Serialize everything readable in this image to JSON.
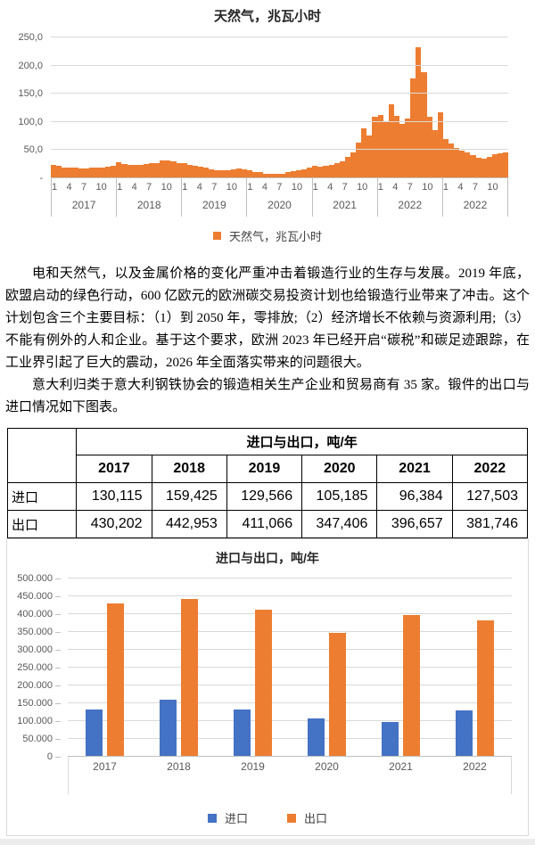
{
  "paragraphs": [
    "电和天然气，以及金属价格的变化严重冲击着锻造行业的生存与发展。2019 年底，欧盟启动的绿色行动，600 亿欧元的欧洲碳交易投资计划也给锻造行业带来了冲击。这个计划包含三个主要目标：（1）到 2050 年，零排放;（2）经济增长不依赖与资源利用;（3）不能有例外的人和企业。基于这个要求，欧洲 2023 年已经开启“碳税”和碳足迹跟踪，在工业界引起了巨大的震动，2026 年全面落实带来的问题很大。",
    "意大利归类于意大利钢铁协会的锻造相关生产企业和贸易商有 35 家。锻件的出口与进口情况如下图表。"
  ],
  "table": {
    "title": "进口与出口，吨/年",
    "corner": "",
    "years": [
      "2017",
      "2018",
      "2019",
      "2020",
      "2021",
      "2022"
    ],
    "rows": [
      {
        "label": "进口",
        "values": [
          "130,115",
          "159,425",
          "129,566",
          "105,185",
          "96,384",
          "127,503"
        ]
      },
      {
        "label": "出口",
        "values": [
          "430,202",
          "442,953",
          "411,066",
          "347,406",
          "396,657",
          "381,746"
        ]
      }
    ]
  },
  "chart_data": [
    {
      "type": "bar",
      "title": "天然气，兆瓦小时",
      "ylabel": "",
      "ylim": [
        0,
        250
      ],
      "y_tick_labels": [
        "250,0",
        "200,0",
        "150,0",
        "100,0",
        "50,0",
        "-"
      ],
      "month_tick_labels": [
        "1",
        "4",
        "7",
        "10"
      ],
      "year_groups": [
        "2017",
        "2018",
        "2019",
        "2020",
        "2021",
        "2022",
        "2022"
      ],
      "grid": true,
      "legend_position": "bottom",
      "legend": [
        {
          "label": "天然气，兆瓦小时",
          "color": "#ED7D31"
        }
      ],
      "monthly_values": [
        22,
        20,
        18,
        17,
        17,
        16,
        16,
        17,
        17,
        18,
        19,
        21,
        27,
        24,
        22,
        22,
        23,
        24,
        25,
        26,
        30,
        31,
        29,
        26,
        25,
        23,
        21,
        19,
        17,
        15,
        13,
        12,
        13,
        15,
        16,
        15,
        12,
        10,
        9,
        7,
        6,
        6,
        7,
        9,
        11,
        13,
        15,
        17,
        20,
        19,
        20,
        22,
        25,
        29,
        36,
        45,
        62,
        88,
        75,
        108,
        111,
        98,
        130,
        110,
        96,
        105,
        176,
        233,
        188,
        108,
        85,
        116,
        68,
        60,
        52,
        47,
        44,
        40,
        35,
        33,
        36,
        41,
        43,
        44
      ]
    },
    {
      "type": "bar",
      "title": "进口与出口，吨/年",
      "categories": [
        "2017",
        "2018",
        "2019",
        "2020",
        "2021",
        "2022"
      ],
      "series": [
        {
          "name": "进口",
          "color": "#4472C4",
          "values": [
            130115,
            159425,
            129566,
            105185,
            96384,
            127503
          ]
        },
        {
          "name": "出口",
          "color": "#ED7D31",
          "values": [
            430202,
            442953,
            411066,
            347406,
            396657,
            381746
          ]
        }
      ],
      "ylim": [
        0,
        500000
      ],
      "y_tick_labels": [
        "500.000",
        "450.000",
        "400.000",
        "350.000",
        "300.000",
        "250.000",
        "200.000",
        "150.000",
        "100.000",
        "50.000",
        "0"
      ],
      "grid": true,
      "legend_position": "bottom"
    }
  ]
}
